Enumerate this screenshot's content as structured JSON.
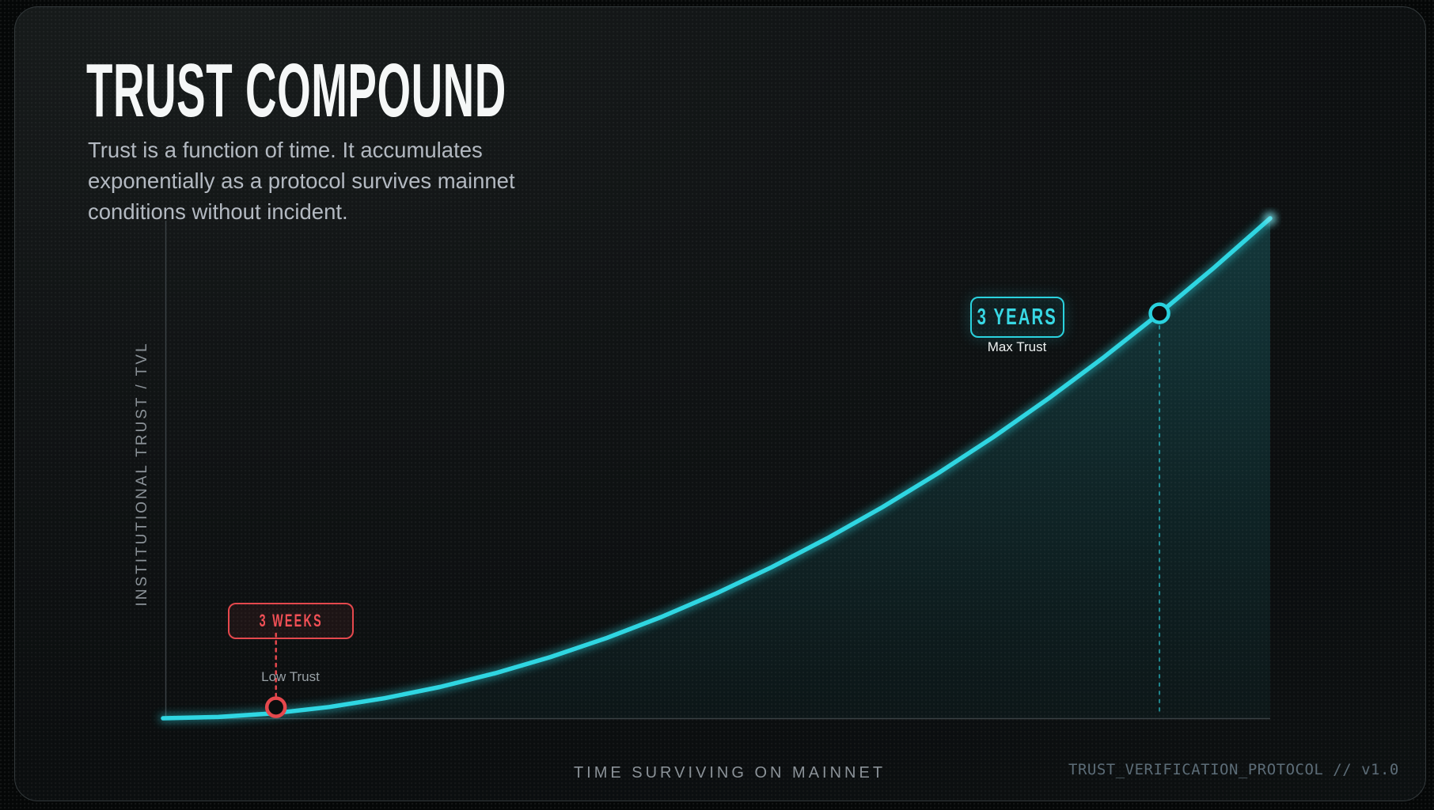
{
  "header": {
    "title": "TRUST COMPOUND",
    "subtitle_lines": [
      "Trust is a function of time. It accumulates",
      "exponentially as a protocol survives mainnet",
      "conditions without incident."
    ]
  },
  "footer": {
    "protocol": "TRUST_VERIFICATION_PROTOCOL // v1.0"
  },
  "colors": {
    "accent_cyan": "#2ad2de",
    "accent_red": "#e5484d",
    "axis_line": "#3a4144",
    "text_muted": "#8b9298",
    "title_text": "#f5f7f7"
  },
  "chart_data": {
    "type": "line",
    "title": "Trust Compound",
    "xlabel": "TIME SURVIVING ON MAINNET",
    "ylabel": "INSTITUTIONAL TRUST / TVL",
    "x_range_norm": [
      0,
      1
    ],
    "y_range_norm": [
      0,
      1
    ],
    "grid": false,
    "legend": false,
    "curve_shape": "quadratic growth y = x^2 (compounding trust over time)",
    "curve_points_norm": [
      [
        0,
        0
      ],
      [
        0.05,
        0.0025
      ],
      [
        0.1,
        0.01
      ],
      [
        0.15,
        0.0225
      ],
      [
        0.2,
        0.04
      ],
      [
        0.25,
        0.0625
      ],
      [
        0.3,
        0.09
      ],
      [
        0.35,
        0.1225
      ],
      [
        0.4,
        0.16
      ],
      [
        0.45,
        0.2025
      ],
      [
        0.5,
        0.25
      ],
      [
        0.55,
        0.3025
      ],
      [
        0.6,
        0.36
      ],
      [
        0.65,
        0.4225
      ],
      [
        0.7,
        0.49
      ],
      [
        0.75,
        0.5625
      ],
      [
        0.8,
        0.64
      ],
      [
        0.85,
        0.7225
      ],
      [
        0.9,
        0.81
      ],
      [
        0.95,
        0.9025
      ],
      [
        1,
        1
      ]
    ],
    "markers": [
      {
        "id": "low",
        "x": 0.102,
        "y": 0.022,
        "time": "3 WEEKS",
        "trust": "Low Trust",
        "color": "#e5484d"
      },
      {
        "id": "high",
        "x": 0.9,
        "y": 0.81,
        "time": "3 YEARS",
        "trust": "Max Trust",
        "color": "#2ad2de"
      }
    ]
  }
}
